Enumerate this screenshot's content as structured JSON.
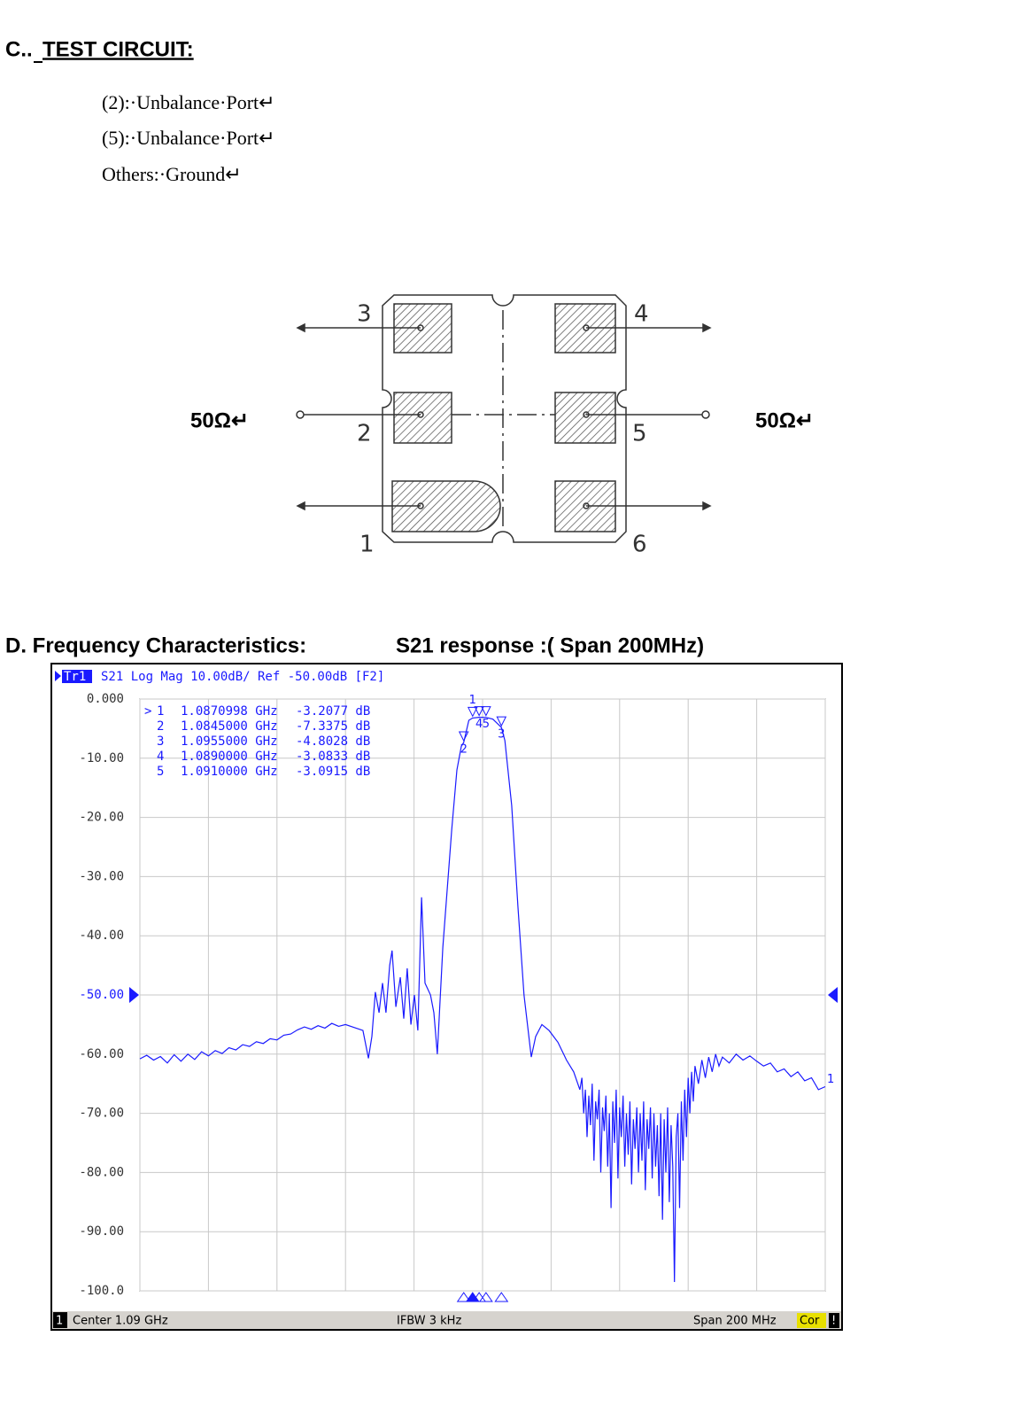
{
  "section_c": {
    "prefix": "C..",
    "title": "TEST CIRCUIT:",
    "lines": [
      "(2):·Unbalance·Port↵",
      "(5):·Unbalance·Port↵",
      "Others:·Ground↵"
    ]
  },
  "circuit": {
    "left_impedance": "50Ω↵",
    "right_impedance": "50Ω↵",
    "pins": [
      "1",
      "2",
      "3",
      "4",
      "5",
      "6"
    ]
  },
  "section_d": {
    "title": "D. Frequency Characteristics:",
    "subtitle": "S21 response :( Span 200MHz)"
  },
  "chart_data": {
    "type": "line",
    "trace_name": "Tr1",
    "header": "S21 Log Mag 10.00dB/ Ref -50.00dB [F2]",
    "trace_end_label": "1",
    "color": "#1a1aff",
    "grid": true,
    "ref_level": -50,
    "xlim": [
      0.99,
      1.19
    ],
    "xticks": [
      0.99,
      1.01,
      1.03,
      1.05,
      1.07,
      1.09,
      1.11,
      1.13,
      1.15,
      1.17,
      1.19
    ],
    "ylim": [
      -100,
      0
    ],
    "yticks": [
      {
        "value": 0,
        "label": "0.000"
      },
      {
        "value": -10,
        "label": "-10.00"
      },
      {
        "value": -20,
        "label": "-20.00"
      },
      {
        "value": -30,
        "label": "-30.00"
      },
      {
        "value": -40,
        "label": "-40.00"
      },
      {
        "value": -50,
        "label": "-50.00"
      },
      {
        "value": -60,
        "label": "-60.00"
      },
      {
        "value": -70,
        "label": "-70.00"
      },
      {
        "value": -80,
        "label": "-80.00"
      },
      {
        "value": -90,
        "label": "-90.00"
      },
      {
        "value": -100,
        "label": "-100.0"
      }
    ],
    "active_prefix": ">",
    "markers": [
      {
        "name": "1",
        "active": true,
        "x": 1.0870998,
        "x_label": "1.0870998 GHz",
        "value": -3.2077,
        "value_label": "-3.2077 dB"
      },
      {
        "name": "2",
        "x": 1.0845,
        "x_label": "1.0845000 GHz",
        "value": -7.3375,
        "value_label": "-7.3375 dB"
      },
      {
        "name": "3",
        "x": 1.0955,
        "x_label": "1.0955000 GHz",
        "value": -4.8028,
        "value_label": "-4.8028 dB"
      },
      {
        "name": "4",
        "x": 1.089,
        "x_label": "1.0890000 GHz",
        "value": -3.0833,
        "value_label": "-3.0833 dB"
      },
      {
        "name": "5",
        "x": 1.091,
        "x_label": "1.0910000 GHz",
        "value": -3.0915,
        "value_label": "-3.0915 dB"
      }
    ],
    "x": [
      0.99,
      0.992,
      0.994,
      0.996,
      0.998,
      1.0,
      1.002,
      1.004,
      1.006,
      1.008,
      1.01,
      1.012,
      1.014,
      1.016,
      1.018,
      1.02,
      1.022,
      1.024,
      1.026,
      1.028,
      1.03,
      1.032,
      1.034,
      1.036,
      1.038,
      1.04,
      1.042,
      1.044,
      1.046,
      1.048,
      1.05,
      1.0525,
      1.0551,
      1.0567,
      1.0577,
      1.0587,
      1.0598,
      1.0608,
      1.0618,
      1.0629,
      1.0636,
      1.0647,
      1.066,
      1.067,
      1.068,
      1.0691,
      1.0701,
      1.0711,
      1.0722,
      1.0732,
      1.0748,
      1.0758,
      1.0768,
      1.0784,
      1.081,
      1.0825,
      1.0838,
      1.0845,
      1.086,
      1.0870998,
      1.089,
      1.091,
      1.093,
      1.0955,
      1.0965,
      1.0985,
      1.1003,
      1.1021,
      1.1042,
      1.1055,
      1.1073,
      1.1094,
      1.112,
      1.1145,
      1.1166,
      1.1184,
      1.119,
      1.1195,
      1.12,
      1.1205,
      1.121,
      1.1215,
      1.122,
      1.1225,
      1.123,
      1.1235,
      1.124,
      1.1245,
      1.125,
      1.1255,
      1.126,
      1.1265,
      1.127,
      1.1275,
      1.128,
      1.1285,
      1.129,
      1.1295,
      1.13,
      1.1305,
      1.131,
      1.1315,
      1.132,
      1.1325,
      1.133,
      1.1335,
      1.134,
      1.1345,
      1.135,
      1.1355,
      1.136,
      1.1365,
      1.137,
      1.1375,
      1.138,
      1.1385,
      1.139,
      1.1395,
      1.14,
      1.1405,
      1.141,
      1.1415,
      1.142,
      1.1425,
      1.143,
      1.1435,
      1.144,
      1.1445,
      1.145,
      1.1455,
      1.146,
      1.1465,
      1.147,
      1.1475,
      1.148,
      1.1485,
      1.149,
      1.1495,
      1.15,
      1.1505,
      1.151,
      1.1515,
      1.152,
      1.153,
      1.154,
      1.155,
      1.156,
      1.157,
      1.158,
      1.159,
      1.16,
      1.162,
      1.164,
      1.166,
      1.168,
      1.17,
      1.172,
      1.174,
      1.176,
      1.178,
      1.18,
      1.182,
      1.184,
      1.186,
      1.188,
      1.19
    ],
    "values": [
      -60.8,
      -60.2,
      -61.0,
      -60.4,
      -61.5,
      -60.1,
      -61.2,
      -60.0,
      -60.9,
      -59.6,
      -60.3,
      -59.4,
      -59.9,
      -58.9,
      -59.3,
      -58.4,
      -58.7,
      -57.9,
      -58.2,
      -57.4,
      -57.6,
      -56.8,
      -56.6,
      -55.9,
      -55.4,
      -55.8,
      -55.2,
      -55.6,
      -54.8,
      -55.3,
      -55.0,
      -55.5,
      -56.0,
      -60.7,
      -57.0,
      -49.5,
      -53.0,
      -48.0,
      -53.0,
      -45.0,
      -42.5,
      -52.0,
      -47.0,
      -54.0,
      -45.5,
      -55.0,
      -50.0,
      -56.0,
      -33.5,
      -48.0,
      -50.0,
      -53.0,
      -60.0,
      -42.0,
      -22.0,
      -12.0,
      -8.0,
      -7.3375,
      -3.6,
      -3.2077,
      -3.0833,
      -3.0915,
      -3.4,
      -4.8028,
      -7.0,
      -18.0,
      -35.0,
      -50.0,
      -60.5,
      -57.0,
      -55.0,
      -56.0,
      -58.0,
      -61.0,
      -63.0,
      -66.0,
      -64,
      -70,
      -66,
      -74,
      -67,
      -72,
      -65,
      -78,
      -68,
      -71,
      -66,
      -80,
      -69,
      -73,
      -67,
      -79,
      -70,
      -86,
      -68,
      -75,
      -66,
      -81,
      -69,
      -74,
      -67,
      -79,
      -70,
      -77,
      -68,
      -82,
      -71,
      -76,
      -69,
      -80,
      -70,
      -78,
      -68,
      -83,
      -71,
      -76,
      -69,
      -81,
      -70,
      -79,
      -72,
      -84,
      -70,
      -88,
      -71,
      -80,
      -69,
      -85,
      -72,
      -79,
      -98.5,
      -74,
      -70,
      -86,
      -68,
      -78,
      -66,
      -74,
      -64,
      -70,
      -63,
      -68,
      -62,
      -65,
      -61,
      -64,
      -60.5,
      -63,
      -60,
      -62,
      -60.5,
      -61.5,
      -60,
      -61,
      -60.3,
      -61.2,
      -62,
      -61.5,
      -63,
      -62.5,
      -63.8,
      -63,
      -64.5,
      -64,
      -66,
      -65.5
    ],
    "status": {
      "channel": "1",
      "center": "Center 1.09 GHz",
      "ifbw": "IFBW 3 kHz",
      "span": "Span 200 MHz",
      "correction": "Cor",
      "warning": "!"
    }
  }
}
